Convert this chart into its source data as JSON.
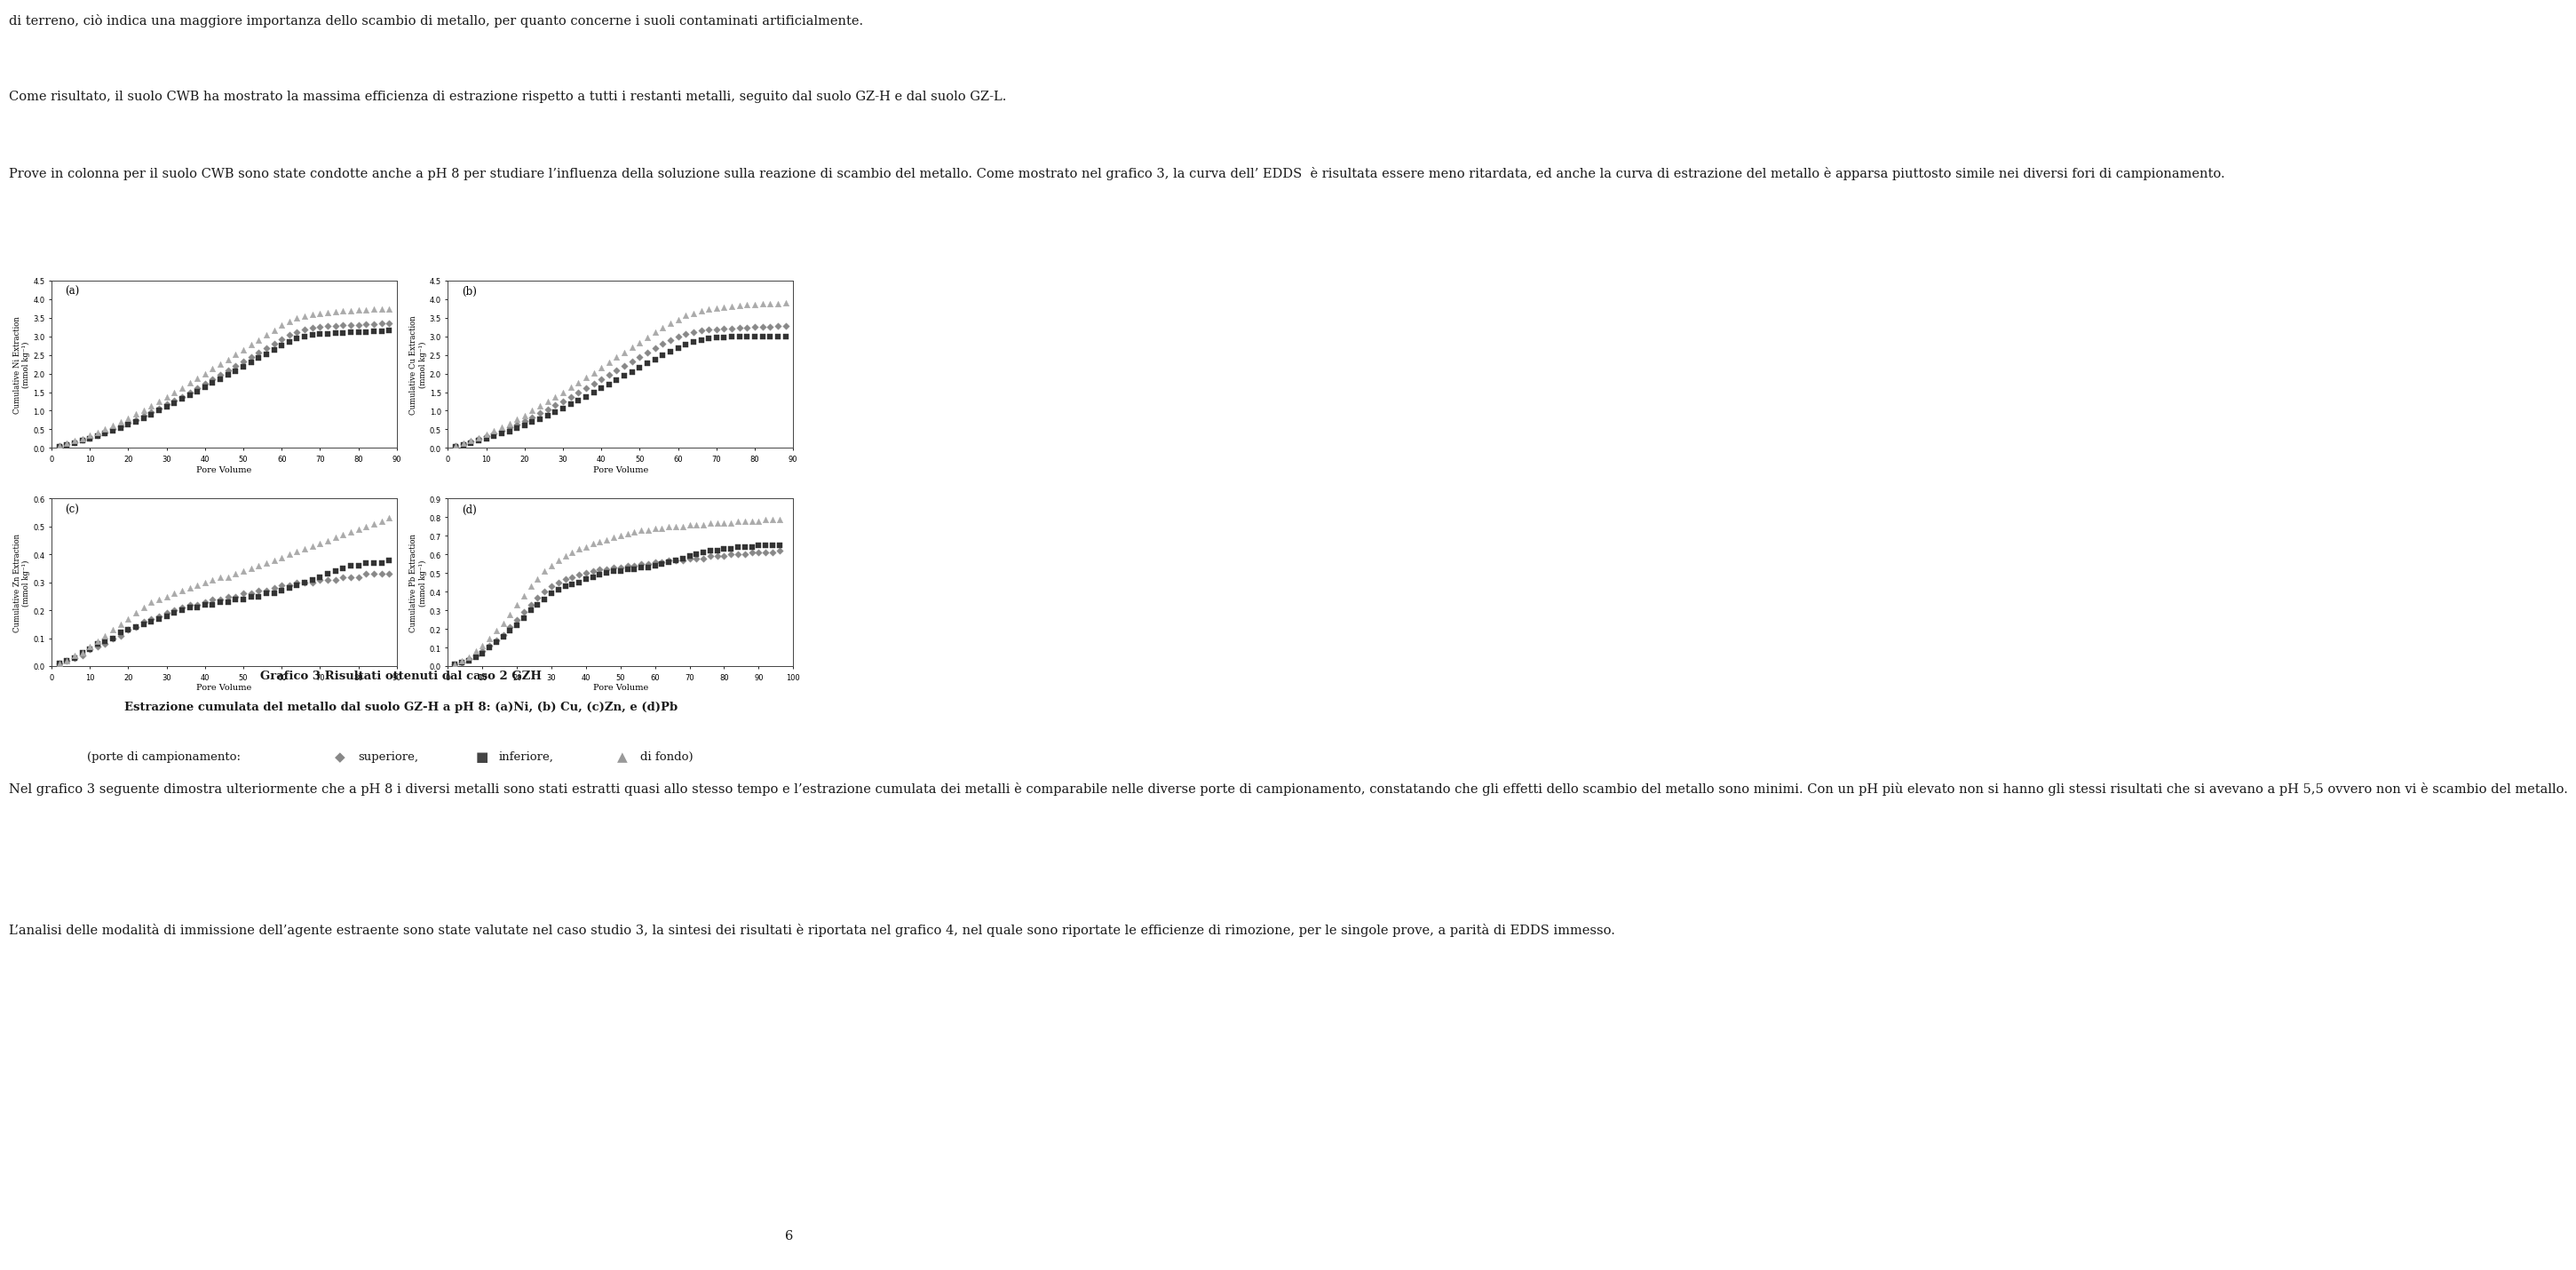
{
  "page_number": "6",
  "background_color": "#ffffff",
  "text_color": "#1a1a1a",
  "paragraphs": [
    "di terreno, ciò indica una maggiore importanza dello scambio di metallo, per quanto concerne i suoli contaminati artificialmente.",
    "Come risultato, il suolo CWB ha mostrato la massima efficienza di estrazione rispetto a tutti i restanti metalli, seguito dal suolo GZ-H e dal suolo GZ-L.",
    "Prove in colonna per il suolo CWB sono state condotte anche a pH 8 per studiare l’influenza della soluzione sulla reazione di scambio del metallo. Come mostrato nel grafico 3, la curva dell’ EDDS  è risultata essere meno ritardata, ed anche la curva di estrazione del metallo è apparsa piuttosto simile nei diversi fori di campionamento.",
    "Nel grafico 3 seguente dimostra ulteriormente che a pH 8 i diversi metalli sono stati estratti quasi allo stesso tempo e l’estrazione cumulata dei metalli è comparabile nelle diverse porte di campionamento, constatando che gli effetti dello scambio del metallo sono minimi. Con un pH più elevato non si hanno gli stessi risultati che si avevano a pH 5,5 ovvero non vi è scambio del metallo.",
    "L’analisi delle modalità di immissione dell’agente estraente sono state valutate nel caso studio 3, la sintesi dei risultati è riportata nel grafico 4, nel quale sono riportate le efficienze di rimozione, per le singole prove, a parità di EDDS immesso."
  ],
  "caption_line1": "Grafico 3 Risultati ottenuti dal caso 2 GZH",
  "caption_line2": "Estrazione cumulata del metallo dal suolo GZ-H a pH 8: (a)Ni, (b) Cu, (c)Zn, e (d)Pb",
  "subplots": [
    {
      "label": "(a)",
      "ylabel": "Cumulative Ni Extraction\n(mmol kg⁻¹)",
      "xlim": [
        0,
        90
      ],
      "ylim": [
        0.0,
        4.5
      ],
      "yticks": [
        0.0,
        0.5,
        1.0,
        1.5,
        2.0,
        2.5,
        3.0,
        3.5,
        4.0,
        4.5
      ],
      "xticks": [
        0,
        10,
        20,
        30,
        40,
        50,
        60,
        70,
        80,
        90
      ]
    },
    {
      "label": "(b)",
      "ylabel": "Cumulative Cu Extraction\n(mmol kg⁻¹)",
      "xlim": [
        0,
        90
      ],
      "ylim": [
        0.0,
        4.5
      ],
      "yticks": [
        0.0,
        0.5,
        1.0,
        1.5,
        2.0,
        2.5,
        3.0,
        3.5,
        4.0,
        4.5
      ],
      "xticks": [
        0,
        10,
        20,
        30,
        40,
        50,
        60,
        70,
        80,
        90
      ]
    },
    {
      "label": "(c)",
      "ylabel": "Cumulative Zn Extraction\n(mmol kg⁻¹)",
      "xlim": [
        0,
        90
      ],
      "ylim": [
        0.0,
        0.6
      ],
      "yticks": [
        0.0,
        0.1,
        0.2,
        0.3,
        0.4,
        0.5,
        0.6
      ],
      "xticks": [
        0,
        10,
        20,
        30,
        40,
        50,
        60,
        70,
        80,
        90
      ]
    },
    {
      "label": "(d)",
      "ylabel": "Cumulative Pb Extraction\n(mmol kg⁻¹)",
      "xlim": [
        0,
        100
      ],
      "ylim": [
        0.0,
        0.9
      ],
      "yticks": [
        0.0,
        0.1,
        0.2,
        0.3,
        0.4,
        0.5,
        0.6,
        0.7,
        0.8,
        0.9
      ],
      "xticks": [
        0,
        10,
        20,
        30,
        40,
        50,
        60,
        70,
        80,
        90,
        100
      ]
    }
  ],
  "series": {
    "superior": {
      "marker": "D",
      "color": "#888888",
      "markersize": 4
    },
    "inferior": {
      "marker": "s",
      "color": "#333333",
      "markersize": 4
    },
    "bottom": {
      "marker": "^",
      "color": "#aaaaaa",
      "markersize": 5
    }
  },
  "data_Ni": {
    "superior_x": [
      2,
      4,
      6,
      8,
      10,
      12,
      14,
      16,
      18,
      20,
      22,
      24,
      26,
      28,
      30,
      32,
      34,
      36,
      38,
      40,
      42,
      44,
      46,
      48,
      50,
      52,
      54,
      56,
      58,
      60,
      62,
      64,
      66,
      68,
      70,
      72,
      74,
      76,
      78,
      80,
      82,
      84,
      86,
      88
    ],
    "superior_y": [
      0.05,
      0.1,
      0.16,
      0.22,
      0.28,
      0.35,
      0.42,
      0.5,
      0.58,
      0.67,
      0.76,
      0.86,
      0.96,
      1.06,
      1.17,
      1.27,
      1.38,
      1.49,
      1.61,
      1.72,
      1.84,
      1.96,
      2.08,
      2.2,
      2.32,
      2.44,
      2.56,
      2.68,
      2.8,
      2.92,
      3.04,
      3.12,
      3.18,
      3.22,
      3.25,
      3.27,
      3.28,
      3.29,
      3.3,
      3.31,
      3.32,
      3.33,
      3.34,
      3.35
    ],
    "inferior_x": [
      2,
      4,
      6,
      8,
      10,
      12,
      14,
      16,
      18,
      20,
      22,
      24,
      26,
      28,
      30,
      32,
      34,
      36,
      38,
      40,
      42,
      44,
      46,
      48,
      50,
      52,
      54,
      56,
      58,
      60,
      62,
      64,
      66,
      68,
      70,
      72,
      74,
      76,
      78,
      80,
      82,
      84,
      86,
      88
    ],
    "inferior_y": [
      0.04,
      0.09,
      0.14,
      0.2,
      0.26,
      0.32,
      0.39,
      0.46,
      0.54,
      0.62,
      0.71,
      0.8,
      0.9,
      1.0,
      1.1,
      1.2,
      1.31,
      1.41,
      1.52,
      1.63,
      1.74,
      1.85,
      1.96,
      2.07,
      2.18,
      2.29,
      2.41,
      2.52,
      2.63,
      2.74,
      2.85,
      2.93,
      2.99,
      3.03,
      3.06,
      3.07,
      3.08,
      3.09,
      3.1,
      3.11,
      3.12,
      3.13,
      3.14,
      3.15
    ],
    "bottom_x": [
      2,
      4,
      6,
      8,
      10,
      12,
      14,
      16,
      18,
      20,
      22,
      24,
      26,
      28,
      30,
      32,
      34,
      36,
      38,
      40,
      42,
      44,
      46,
      48,
      50,
      52,
      54,
      56,
      58,
      60,
      62,
      64,
      66,
      68,
      70,
      72,
      74,
      76,
      78,
      80,
      82,
      84,
      86,
      88
    ],
    "bottom_y": [
      0.06,
      0.12,
      0.19,
      0.26,
      0.34,
      0.42,
      0.51,
      0.6,
      0.7,
      0.8,
      0.91,
      1.02,
      1.14,
      1.25,
      1.37,
      1.49,
      1.61,
      1.74,
      1.86,
      1.99,
      2.12,
      2.25,
      2.38,
      2.51,
      2.64,
      2.77,
      2.9,
      3.03,
      3.16,
      3.29,
      3.4,
      3.48,
      3.54,
      3.58,
      3.61,
      3.63,
      3.65,
      3.67,
      3.69,
      3.7,
      3.71,
      3.72,
      3.73,
      3.74
    ]
  },
  "data_Cu": {
    "superior_x": [
      2,
      4,
      6,
      8,
      10,
      12,
      14,
      16,
      18,
      20,
      22,
      24,
      26,
      28,
      30,
      32,
      34,
      36,
      38,
      40,
      42,
      44,
      46,
      48,
      50,
      52,
      54,
      56,
      58,
      60,
      62,
      64,
      66,
      68,
      70,
      72,
      74,
      76,
      78,
      80,
      82,
      84,
      86,
      88
    ],
    "superior_y": [
      0.05,
      0.11,
      0.17,
      0.24,
      0.31,
      0.38,
      0.46,
      0.55,
      0.63,
      0.73,
      0.83,
      0.93,
      1.04,
      1.15,
      1.26,
      1.37,
      1.49,
      1.61,
      1.73,
      1.85,
      1.97,
      2.09,
      2.21,
      2.33,
      2.45,
      2.57,
      2.68,
      2.79,
      2.89,
      2.98,
      3.05,
      3.1,
      3.15,
      3.18,
      3.19,
      3.2,
      3.21,
      3.22,
      3.23,
      3.24,
      3.25,
      3.26,
      3.27,
      3.28
    ],
    "inferior_x": [
      2,
      4,
      6,
      8,
      10,
      12,
      14,
      16,
      18,
      20,
      22,
      24,
      26,
      28,
      30,
      32,
      34,
      36,
      38,
      40,
      42,
      44,
      46,
      48,
      50,
      52,
      54,
      56,
      58,
      60,
      62,
      64,
      66,
      68,
      70,
      72,
      74,
      76,
      78,
      80,
      82,
      84,
      86,
      88
    ],
    "inferior_y": [
      0.04,
      0.08,
      0.13,
      0.19,
      0.25,
      0.31,
      0.38,
      0.45,
      0.53,
      0.61,
      0.69,
      0.78,
      0.88,
      0.97,
      1.07,
      1.17,
      1.28,
      1.38,
      1.49,
      1.6,
      1.71,
      1.82,
      1.93,
      2.04,
      2.15,
      2.27,
      2.38,
      2.49,
      2.59,
      2.69,
      2.78,
      2.85,
      2.9,
      2.94,
      2.96,
      2.97,
      2.98,
      2.99,
      2.99,
      2.99,
      2.99,
      2.99,
      2.99,
      2.99
    ],
    "bottom_x": [
      2,
      4,
      6,
      8,
      10,
      12,
      14,
      16,
      18,
      20,
      22,
      24,
      26,
      28,
      30,
      32,
      34,
      36,
      38,
      40,
      42,
      44,
      46,
      48,
      50,
      52,
      54,
      56,
      58,
      60,
      62,
      64,
      66,
      68,
      70,
      72,
      74,
      76,
      78,
      80,
      82,
      84,
      86,
      88
    ],
    "bottom_y": [
      0.06,
      0.13,
      0.2,
      0.28,
      0.37,
      0.46,
      0.56,
      0.66,
      0.77,
      0.88,
      1.0,
      1.12,
      1.24,
      1.37,
      1.5,
      1.63,
      1.76,
      1.89,
      2.02,
      2.16,
      2.29,
      2.43,
      2.56,
      2.7,
      2.83,
      2.97,
      3.1,
      3.22,
      3.34,
      3.45,
      3.55,
      3.62,
      3.67,
      3.72,
      3.75,
      3.78,
      3.8,
      3.82,
      3.84,
      3.85,
      3.86,
      3.87,
      3.88,
      3.89
    ]
  },
  "data_Zn": {
    "superior_x": [
      2,
      4,
      6,
      8,
      10,
      12,
      14,
      16,
      18,
      20,
      22,
      24,
      26,
      28,
      30,
      32,
      34,
      36,
      38,
      40,
      42,
      44,
      46,
      48,
      50,
      52,
      54,
      56,
      58,
      60,
      62,
      64,
      66,
      68,
      70,
      72,
      74,
      76,
      78,
      80,
      82,
      84,
      86,
      88
    ],
    "superior_y": [
      0.01,
      0.02,
      0.03,
      0.04,
      0.06,
      0.07,
      0.08,
      0.1,
      0.11,
      0.13,
      0.14,
      0.16,
      0.17,
      0.18,
      0.19,
      0.2,
      0.21,
      0.22,
      0.22,
      0.23,
      0.24,
      0.24,
      0.25,
      0.25,
      0.26,
      0.26,
      0.27,
      0.27,
      0.28,
      0.29,
      0.29,
      0.3,
      0.3,
      0.3,
      0.31,
      0.31,
      0.31,
      0.32,
      0.32,
      0.32,
      0.33,
      0.33,
      0.33,
      0.33
    ],
    "inferior_x": [
      2,
      4,
      6,
      8,
      10,
      12,
      14,
      16,
      18,
      20,
      22,
      24,
      26,
      28,
      30,
      32,
      34,
      36,
      38,
      40,
      42,
      44,
      46,
      48,
      50,
      52,
      54,
      56,
      58,
      60,
      62,
      64,
      66,
      68,
      70,
      72,
      74,
      76,
      78,
      80,
      82,
      84,
      86,
      88
    ],
    "inferior_y": [
      0.01,
      0.02,
      0.03,
      0.05,
      0.06,
      0.08,
      0.09,
      0.1,
      0.12,
      0.13,
      0.14,
      0.15,
      0.16,
      0.17,
      0.18,
      0.19,
      0.2,
      0.21,
      0.21,
      0.22,
      0.22,
      0.23,
      0.23,
      0.24,
      0.24,
      0.25,
      0.25,
      0.26,
      0.26,
      0.27,
      0.28,
      0.29,
      0.3,
      0.31,
      0.32,
      0.33,
      0.34,
      0.35,
      0.36,
      0.36,
      0.37,
      0.37,
      0.37,
      0.38
    ],
    "bottom_x": [
      2,
      4,
      6,
      8,
      10,
      12,
      14,
      16,
      18,
      20,
      22,
      24,
      26,
      28,
      30,
      32,
      34,
      36,
      38,
      40,
      42,
      44,
      46,
      48,
      50,
      52,
      54,
      56,
      58,
      60,
      62,
      64,
      66,
      68,
      70,
      72,
      74,
      76,
      78,
      80,
      82,
      84,
      86,
      88
    ],
    "bottom_y": [
      0.01,
      0.02,
      0.04,
      0.05,
      0.07,
      0.09,
      0.11,
      0.13,
      0.15,
      0.17,
      0.19,
      0.21,
      0.23,
      0.24,
      0.25,
      0.26,
      0.27,
      0.28,
      0.29,
      0.3,
      0.31,
      0.32,
      0.32,
      0.33,
      0.34,
      0.35,
      0.36,
      0.37,
      0.38,
      0.39,
      0.4,
      0.41,
      0.42,
      0.43,
      0.44,
      0.45,
      0.46,
      0.47,
      0.48,
      0.49,
      0.5,
      0.51,
      0.52,
      0.53
    ]
  },
  "data_Pb": {
    "superior_x": [
      2,
      4,
      6,
      8,
      10,
      12,
      14,
      16,
      18,
      20,
      22,
      24,
      26,
      28,
      30,
      32,
      34,
      36,
      38,
      40,
      42,
      44,
      46,
      48,
      50,
      52,
      54,
      56,
      58,
      60,
      62,
      64,
      66,
      68,
      70,
      72,
      74,
      76,
      78,
      80,
      82,
      84,
      86,
      88,
      90,
      92,
      94,
      96
    ],
    "superior_y": [
      0.01,
      0.02,
      0.04,
      0.06,
      0.08,
      0.11,
      0.14,
      0.17,
      0.21,
      0.25,
      0.29,
      0.33,
      0.37,
      0.4,
      0.43,
      0.45,
      0.47,
      0.48,
      0.49,
      0.5,
      0.51,
      0.52,
      0.52,
      0.53,
      0.53,
      0.54,
      0.54,
      0.55,
      0.55,
      0.56,
      0.56,
      0.57,
      0.57,
      0.57,
      0.58,
      0.58,
      0.58,
      0.59,
      0.59,
      0.59,
      0.6,
      0.6,
      0.6,
      0.61,
      0.61,
      0.61,
      0.61,
      0.62
    ],
    "inferior_x": [
      2,
      4,
      6,
      8,
      10,
      12,
      14,
      16,
      18,
      20,
      22,
      24,
      26,
      28,
      30,
      32,
      34,
      36,
      38,
      40,
      42,
      44,
      46,
      48,
      50,
      52,
      54,
      56,
      58,
      60,
      62,
      64,
      66,
      68,
      70,
      72,
      74,
      76,
      78,
      80,
      82,
      84,
      86,
      88,
      90,
      92,
      94,
      96
    ],
    "inferior_y": [
      0.01,
      0.02,
      0.03,
      0.05,
      0.07,
      0.1,
      0.13,
      0.16,
      0.19,
      0.22,
      0.26,
      0.3,
      0.33,
      0.36,
      0.39,
      0.41,
      0.43,
      0.44,
      0.45,
      0.47,
      0.48,
      0.49,
      0.5,
      0.51,
      0.51,
      0.52,
      0.52,
      0.53,
      0.53,
      0.54,
      0.55,
      0.56,
      0.57,
      0.58,
      0.59,
      0.6,
      0.61,
      0.62,
      0.62,
      0.63,
      0.63,
      0.64,
      0.64,
      0.64,
      0.65,
      0.65,
      0.65,
      0.65
    ],
    "bottom_x": [
      2,
      4,
      6,
      8,
      10,
      12,
      14,
      16,
      18,
      20,
      22,
      24,
      26,
      28,
      30,
      32,
      34,
      36,
      38,
      40,
      42,
      44,
      46,
      48,
      50,
      52,
      54,
      56,
      58,
      60,
      62,
      64,
      66,
      68,
      70,
      72,
      74,
      76,
      78,
      80,
      82,
      84,
      86,
      88,
      90,
      92,
      94,
      96
    ],
    "bottom_y": [
      0.01,
      0.03,
      0.05,
      0.08,
      0.11,
      0.15,
      0.19,
      0.23,
      0.28,
      0.33,
      0.38,
      0.43,
      0.47,
      0.51,
      0.54,
      0.57,
      0.59,
      0.61,
      0.63,
      0.64,
      0.66,
      0.67,
      0.68,
      0.69,
      0.7,
      0.71,
      0.72,
      0.73,
      0.73,
      0.74,
      0.74,
      0.75,
      0.75,
      0.75,
      0.76,
      0.76,
      0.76,
      0.77,
      0.77,
      0.77,
      0.77,
      0.78,
      0.78,
      0.78,
      0.78,
      0.79,
      0.79,
      0.79
    ]
  }
}
